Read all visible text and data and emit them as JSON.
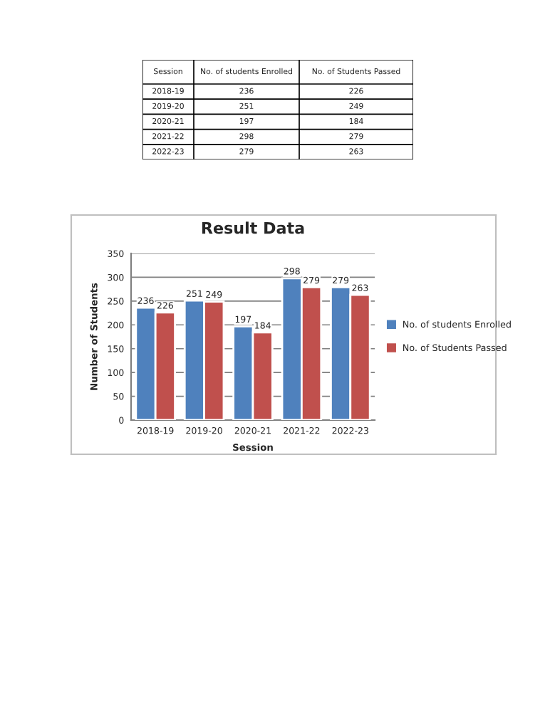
{
  "chart_data": [
    {
      "type": "other",
      "annotations": [
        "Session",
        "No. of students Enrolled",
        "No. of Students Passed",
        "2018-19",
        "236",
        "226",
        "2019-20",
        "251",
        "249",
        "2020-21",
        "197",
        "184",
        "2021-22",
        "298",
        "279",
        "2022-23",
        "279",
        "263"
      ]
    },
    {
      "type": "bar",
      "title": "Result Data",
      "xlabel": "Session",
      "ylabel": "Number of Students",
      "categories": [
        "2018-19",
        "2019-20",
        "2020-21",
        "2021-22",
        "2022-23"
      ],
      "series": [
        {
          "name": "No. of students Enrolled",
          "color": "#4f81bd",
          "values": [
            236,
            251,
            197,
            298,
            279
          ]
        },
        {
          "name": "No. of Students Passed",
          "color": "#c0504d",
          "values": [
            226,
            249,
            184,
            279,
            263
          ]
        }
      ],
      "ylim": [
        0,
        350
      ],
      "yticks": [
        0,
        50,
        100,
        150,
        200,
        250,
        300,
        350
      ],
      "grid": "y",
      "legend": "right",
      "data_labels": true
    }
  ]
}
